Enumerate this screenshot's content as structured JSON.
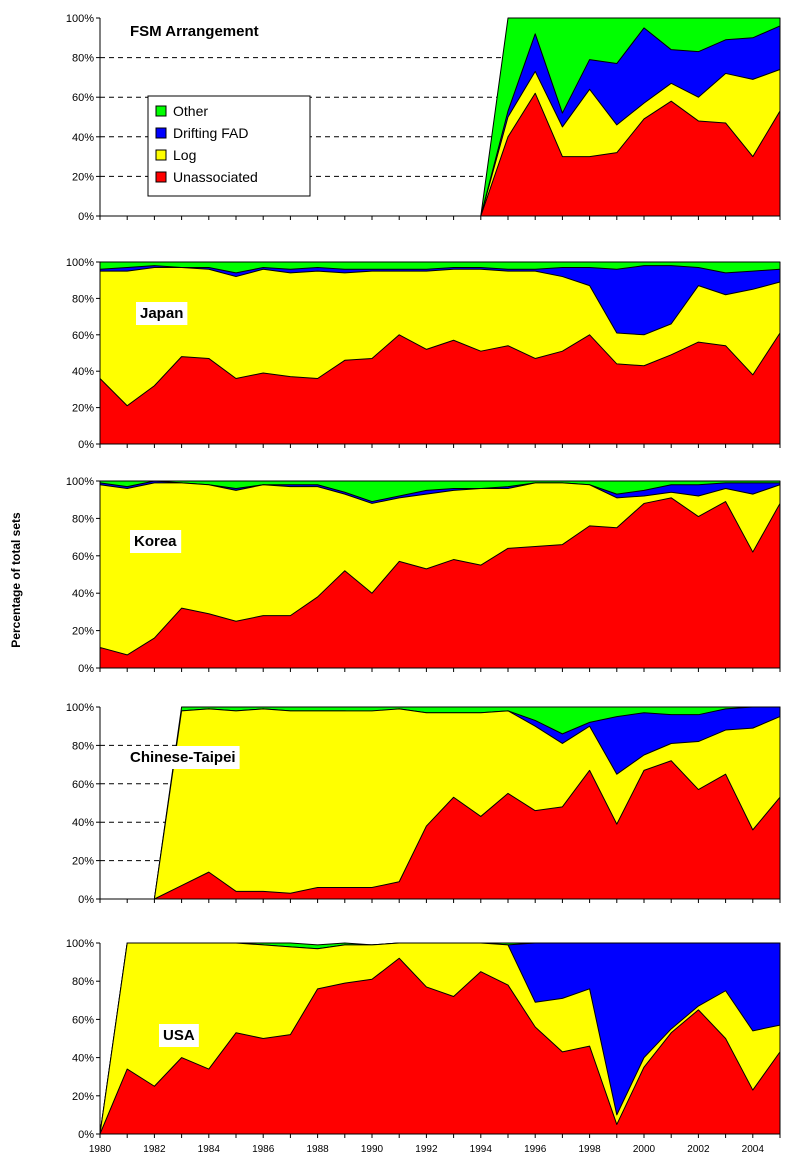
{
  "colors": {
    "Unassociated": "#ff0000",
    "Log": "#ffff00",
    "Drifting FAD": "#0000ff",
    "Other": "#00ff00"
  },
  "chart_data": {
    "type": "area",
    "stacked": true,
    "percent": true,
    "ylabel": "Percentage of total sets",
    "y_tick_labels": [
      "0%",
      "20%",
      "40%",
      "60%",
      "80%",
      "100%"
    ],
    "x": [
      1980,
      1981,
      1982,
      1983,
      1984,
      1985,
      1986,
      1987,
      1988,
      1989,
      1990,
      1991,
      1992,
      1993,
      1994,
      1995,
      1996,
      1997,
      1998,
      1999,
      2000,
      2001,
      2002,
      2003,
      2004,
      2005
    ],
    "x_tick_labels": [
      "1980",
      "1982",
      "1984",
      "1986",
      "1988",
      "1990",
      "1992",
      "1994",
      "1996",
      "1998",
      "2000",
      "2002",
      "2004"
    ],
    "legend": {
      "placement": "left",
      "entries": [
        "Other",
        "Drifting FAD",
        "Log",
        "Unassociated"
      ]
    },
    "panels": [
      {
        "title": "FSM Arrangement",
        "ylim": [
          0,
          100
        ],
        "series_cumulative_top": {
          "Unassociated": [
            null,
            null,
            null,
            null,
            null,
            null,
            null,
            null,
            null,
            null,
            null,
            null,
            null,
            null,
            0,
            40,
            62,
            30,
            30,
            32,
            49,
            58,
            48,
            47,
            30,
            53
          ],
          "Log": [
            null,
            null,
            null,
            null,
            null,
            null,
            null,
            null,
            null,
            null,
            null,
            null,
            null,
            null,
            0,
            50,
            73,
            45,
            64,
            46,
            57,
            67,
            60,
            72,
            69,
            74
          ],
          "Drifting FAD": [
            null,
            null,
            null,
            null,
            null,
            null,
            null,
            null,
            null,
            null,
            null,
            null,
            null,
            null,
            0,
            53,
            92,
            52,
            79,
            77,
            95,
            84,
            83,
            89,
            90,
            96
          ],
          "Other": [
            null,
            null,
            null,
            null,
            null,
            null,
            null,
            null,
            null,
            null,
            null,
            null,
            null,
            null,
            0,
            100,
            100,
            100,
            100,
            100,
            100,
            100,
            100,
            100,
            100,
            100
          ]
        }
      },
      {
        "title": "Japan",
        "ylim": [
          0,
          100
        ],
        "series_cumulative_top": {
          "Unassociated": [
            36,
            21,
            32,
            48,
            47,
            36,
            39,
            37,
            36,
            46,
            47,
            60,
            52,
            57,
            51,
            54,
            47,
            51,
            60,
            44,
            43,
            49,
            56,
            54,
            38,
            61
          ],
          "Log": [
            95,
            95,
            97,
            97,
            96,
            92,
            96,
            94,
            95,
            94,
            95,
            95,
            95,
            96,
            96,
            95,
            95,
            92,
            87,
            61,
            60,
            66,
            87,
            82,
            85,
            89
          ],
          "Drifting FAD": [
            96,
            97,
            98,
            97,
            97,
            94,
            97,
            96,
            97,
            96,
            96,
            96,
            96,
            97,
            97,
            96,
            96,
            97,
            97,
            96,
            98,
            98,
            97,
            94,
            95,
            96
          ],
          "Other": [
            100,
            100,
            100,
            100,
            100,
            100,
            100,
            100,
            100,
            100,
            100,
            100,
            100,
            100,
            100,
            100,
            100,
            100,
            100,
            100,
            100,
            100,
            100,
            100,
            100,
            100
          ]
        }
      },
      {
        "title": "Korea",
        "ylim": [
          0,
          100
        ],
        "series_cumulative_top": {
          "Unassociated": [
            11,
            7,
            16,
            32,
            29,
            25,
            28,
            28,
            38,
            52,
            40,
            57,
            53,
            58,
            55,
            64,
            65,
            66,
            76,
            75,
            88,
            91,
            81,
            89,
            62,
            88
          ],
          "Log": [
            98,
            96,
            99,
            99,
            98,
            95,
            98,
            97,
            97,
            93,
            88,
            91,
            93,
            95,
            96,
            96,
            99,
            99,
            98,
            91,
            92,
            94,
            92,
            96,
            93,
            98
          ],
          "Drifting FAD": [
            99,
            97,
            100,
            99,
            98,
            96,
            98,
            98,
            98,
            94,
            89,
            92,
            95,
            96,
            96,
            97,
            99,
            99,
            98,
            93,
            95,
            98,
            98,
            99,
            99,
            99
          ],
          "Other": [
            100,
            100,
            100,
            100,
            100,
            100,
            100,
            100,
            100,
            100,
            100,
            100,
            100,
            100,
            100,
            100,
            100,
            100,
            100,
            100,
            100,
            100,
            100,
            100,
            100,
            100
          ]
        }
      },
      {
        "title": "Chinese-Taipei",
        "ylim": [
          0,
          100
        ],
        "series_cumulative_top": {
          "Unassociated": [
            0,
            0,
            0,
            7,
            14,
            4,
            4,
            3,
            6,
            6,
            6,
            9,
            38,
            53,
            43,
            55,
            46,
            48,
            67,
            39,
            67,
            72,
            57,
            65,
            36,
            53
          ],
          "Log": [
            0,
            0,
            0,
            98,
            99,
            98,
            99,
            98,
            98,
            98,
            98,
            99,
            97,
            97,
            97,
            98,
            90,
            81,
            90,
            65,
            75,
            81,
            82,
            88,
            89,
            95
          ],
          "Drifting FAD": [
            0,
            0,
            0,
            98,
            99,
            98,
            99,
            98,
            98,
            98,
            97,
            99,
            97,
            97,
            97,
            98,
            93,
            86,
            92,
            95,
            97,
            96,
            96,
            99,
            100,
            100
          ],
          "Other": [
            0,
            0,
            0,
            100,
            100,
            100,
            100,
            100,
            100,
            100,
            100,
            100,
            100,
            100,
            100,
            100,
            100,
            100,
            100,
            100,
            100,
            100,
            100,
            100,
            100,
            100
          ]
        }
      },
      {
        "title": "USA",
        "ylim": [
          0,
          100
        ],
        "series_cumulative_top": {
          "Unassociated": [
            0,
            34,
            25,
            40,
            34,
            53,
            50,
            52,
            76,
            79,
            81,
            92,
            77,
            72,
            85,
            78,
            56,
            43,
            46,
            5,
            35,
            53,
            65,
            50,
            23,
            43
          ],
          "Log": [
            0,
            100,
            100,
            100,
            100,
            100,
            99,
            98,
            97,
            99,
            99,
            100,
            100,
            100,
            100,
            99,
            69,
            71,
            76,
            10,
            40,
            55,
            67,
            75,
            54,
            57
          ],
          "Drifting FAD": [
            0,
            100,
            100,
            100,
            100,
            100,
            99,
            98,
            97,
            99,
            99,
            100,
            100,
            100,
            100,
            99,
            100,
            100,
            100,
            100,
            100,
            100,
            100,
            100,
            100,
            100
          ],
          "Other": [
            0,
            100,
            100,
            100,
            100,
            100,
            100,
            100,
            99,
            100,
            99,
            100,
            100,
            100,
            100,
            100,
            100,
            100,
            100,
            100,
            100,
            100,
            100,
            100,
            100,
            100
          ]
        }
      }
    ]
  }
}
